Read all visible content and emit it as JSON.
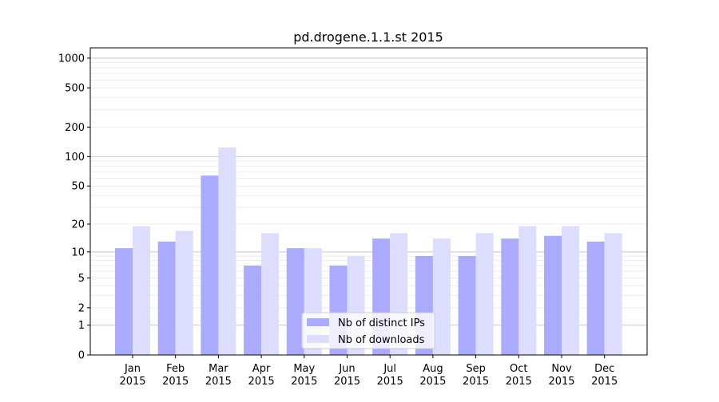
{
  "chart_data": {
    "type": "bar",
    "title": "pd.drogene.1.1.st 2015",
    "xlabel": "",
    "ylabel": "",
    "y_scale": "log(1+y)",
    "ylim": [
      0,
      1270
    ],
    "y_ticks": [
      0,
      1,
      2,
      5,
      10,
      20,
      50,
      100,
      200,
      500,
      1000
    ],
    "y_tick_labels": [
      "0",
      "1",
      "2",
      "5",
      "10",
      "20",
      "50",
      "100",
      "200",
      "500",
      "1000"
    ],
    "grid": true,
    "legend_position": "bottom-center",
    "categories": [
      [
        "Jan",
        "2015"
      ],
      [
        "Feb",
        "2015"
      ],
      [
        "Mar",
        "2015"
      ],
      [
        "Apr",
        "2015"
      ],
      [
        "May",
        "2015"
      ],
      [
        "Jun",
        "2015"
      ],
      [
        "Jul",
        "2015"
      ],
      [
        "Aug",
        "2015"
      ],
      [
        "Sep",
        "2015"
      ],
      [
        "Oct",
        "2015"
      ],
      [
        "Nov",
        "2015"
      ],
      [
        "Dec",
        "2015"
      ]
    ],
    "series": [
      {
        "name": "Nb of distinct IPs",
        "color": "#aaaaff",
        "values": [
          11,
          13,
          64,
          7,
          11,
          7,
          14,
          9,
          9,
          14,
          15,
          13
        ]
      },
      {
        "name": "Nb of downloads",
        "color": "#ddddff",
        "values": [
          19,
          17,
          124,
          16,
          11,
          9,
          16,
          14,
          16,
          19,
          19,
          16
        ]
      }
    ]
  }
}
